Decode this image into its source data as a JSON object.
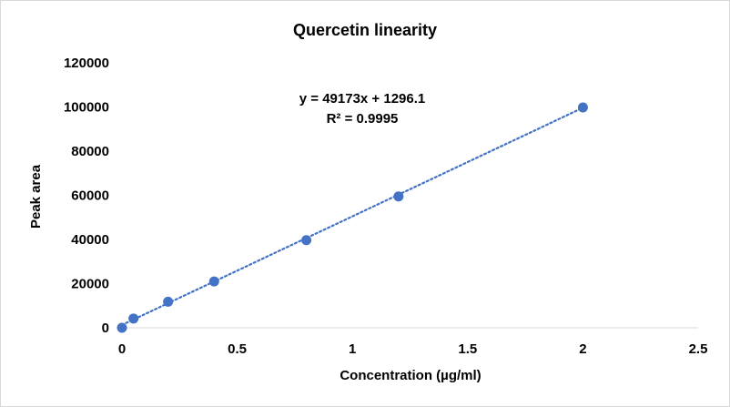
{
  "chart_data": {
    "type": "scatter",
    "title": "Quercetin linearity",
    "xlabel": "Concentration (µg/ml)",
    "ylabel": "Peak area",
    "xlim": [
      0,
      2.5
    ],
    "ylim": [
      0,
      120000
    ],
    "x_ticks": [
      "0",
      "0.5",
      "1",
      "1.5",
      "2",
      "2.5"
    ],
    "y_ticks": [
      "0",
      "20000",
      "40000",
      "60000",
      "80000",
      "100000",
      "120000"
    ],
    "grid": false,
    "legend": "none",
    "marker_color": "#4472C4",
    "trendline": {
      "type": "linear",
      "style": "dotted",
      "color": "#4472C4",
      "slope": 49173,
      "intercept": 1296.1,
      "x_range": [
        0,
        2
      ]
    },
    "equation_label": "y = 49173x + 1296.1",
    "r2_label": "R² = 0.9995",
    "series": [
      {
        "x": [
          0,
          0.05,
          0.2,
          0.4,
          0.8,
          1.2,
          2
        ],
        "y": [
          0,
          4200,
          11800,
          21000,
          39700,
          59500,
          99800
        ]
      }
    ]
  }
}
